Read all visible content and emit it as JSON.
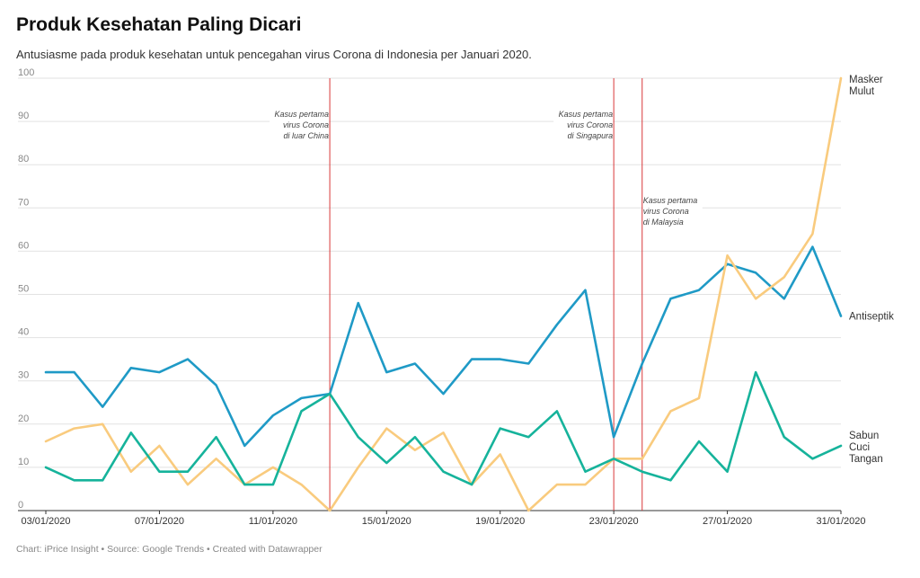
{
  "chart_data": {
    "type": "line",
    "title": "Produk Kesehatan Paling Dicari",
    "subtitle": "Antusiasme pada produk kesehatan untuk pencegahan virus Corona di Indonesia per Januari 2020.",
    "footer": "Chart: iPrice Insight • Source: Google Trends • Created with Datawrapper",
    "x": [
      "03/01/2020",
      "04/01/2020",
      "05/01/2020",
      "06/01/2020",
      "07/01/2020",
      "08/01/2020",
      "09/01/2020",
      "10/01/2020",
      "11/01/2020",
      "12/01/2020",
      "13/01/2020",
      "14/01/2020",
      "15/01/2020",
      "16/01/2020",
      "17/01/2020",
      "18/01/2020",
      "19/01/2020",
      "20/01/2020",
      "21/01/2020",
      "22/01/2020",
      "23/01/2020",
      "24/01/2020",
      "25/01/2020",
      "26/01/2020",
      "27/01/2020",
      "28/01/2020",
      "29/01/2020",
      "30/01/2020",
      "31/01/2020"
    ],
    "xticks": [
      "03/01/2020",
      "07/01/2020",
      "11/01/2020",
      "15/01/2020",
      "19/01/2020",
      "23/01/2020",
      "27/01/2020",
      "31/01/2020"
    ],
    "ylim": [
      0,
      100
    ],
    "yticks": [
      0,
      10,
      20,
      30,
      40,
      50,
      60,
      70,
      80,
      90,
      100
    ],
    "grid": true,
    "series": [
      {
        "name": "Antiseptik",
        "label_lines": [
          "Antiseptik"
        ],
        "color": "#1f9ac6",
        "values": [
          32,
          32,
          24,
          33,
          32,
          35,
          29,
          15,
          22,
          26,
          27,
          48,
          32,
          34,
          27,
          35,
          35,
          34,
          43,
          51,
          17,
          34,
          49,
          51,
          57,
          55,
          49,
          61,
          45
        ]
      },
      {
        "name": "Masker Mulut",
        "label_lines": [
          "Masker",
          "Mulut"
        ],
        "color": "#f9cb7e",
        "values": [
          16,
          19,
          20,
          9,
          15,
          6,
          12,
          6,
          10,
          6,
          0,
          10,
          19,
          14,
          18,
          6,
          13,
          0,
          6,
          6,
          12,
          12,
          23,
          26,
          59,
          49,
          54,
          64,
          100
        ]
      },
      {
        "name": "Sabun Cuci Tangan",
        "label_lines": [
          "Sabun",
          "Cuci",
          "Tangan"
        ],
        "color": "#16b39b",
        "values": [
          10,
          7,
          7,
          18,
          9,
          9,
          17,
          6,
          6,
          23,
          27,
          17,
          11,
          17,
          9,
          6,
          19,
          17,
          23,
          9,
          12,
          9,
          7,
          16,
          9,
          32,
          17,
          12,
          15
        ]
      }
    ],
    "annotations": [
      {
        "x_index": 10.0,
        "lines": [
          "Kasus pertama",
          "virus Corona",
          "di luar China"
        ],
        "anchor": "end",
        "level": "high"
      },
      {
        "x_index": 20.0,
        "lines": [
          "Kasus pertama",
          "virus Corona",
          "di Singapura"
        ],
        "anchor": "end",
        "level": "high"
      },
      {
        "x_index": 21.0,
        "lines": [
          "Kasus pertama",
          "virus Corona",
          "di Malaysia"
        ],
        "anchor": "start",
        "level": "mid"
      }
    ],
    "annotation_line_color": "#d9383a"
  }
}
